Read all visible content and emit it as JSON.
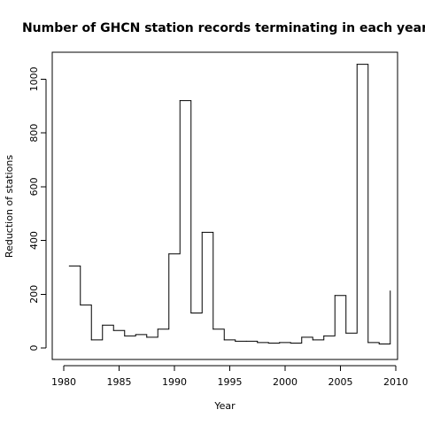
{
  "chart_data": {
    "type": "line",
    "style": "step",
    "title": "Number of GHCN station records terminating in each year",
    "xlabel": "Year",
    "ylabel": "Reduction of stations",
    "xlim": [
      1980,
      2010
    ],
    "ylim": [
      0,
      1100
    ],
    "xticks": [
      1980,
      1985,
      1990,
      1995,
      2000,
      2005,
      2010
    ],
    "yticks": [
      0,
      200,
      400,
      600,
      800,
      1000
    ],
    "grid": false,
    "legend": "none",
    "x": [
      1980.5,
      1981.5,
      1982.5,
      1983.5,
      1984.5,
      1985.5,
      1986.5,
      1987.5,
      1988.5,
      1989.5,
      1990.5,
      1991.5,
      1992.5,
      1993.5,
      1994.5,
      1995.5,
      1996.5,
      1997.5,
      1998.5,
      1999.5,
      2000.5,
      2001.5,
      2002.5,
      2003.5,
      2004.5,
      2005.5,
      2006.5,
      2007.5,
      2008.5,
      2009.5
    ],
    "values": [
      305,
      160,
      30,
      85,
      65,
      45,
      50,
      40,
      70,
      350,
      920,
      130,
      430,
      70,
      30,
      25,
      25,
      20,
      18,
      20,
      18,
      40,
      30,
      45,
      195,
      55,
      1055,
      20,
      15,
      212
    ],
    "series_color": "#000000"
  }
}
